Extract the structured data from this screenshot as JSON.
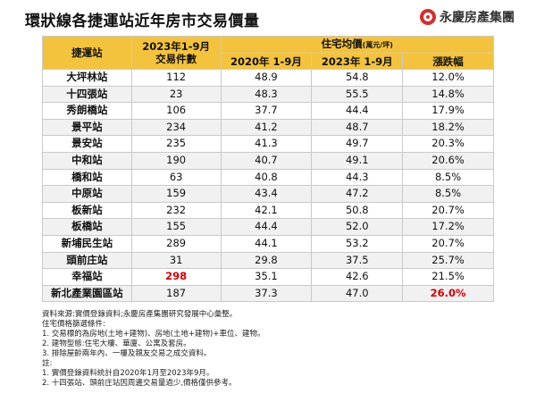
{
  "title": "環狀線各捷運站近年房市交易價量",
  "brand": {
    "name": "永慶房產集團",
    "logo_icon": "yungching-logo-icon"
  },
  "table": {
    "headers": {
      "station": "捷運站",
      "count_line1": "2023年1-9月",
      "count_line2": "交易件數",
      "price_group": "住宅均價",
      "price_unit": "(萬元/坪)",
      "price_2020": "2020年 1-9月",
      "price_2023": "2023年 1-9月",
      "change": "漲跌幅"
    },
    "rows": [
      {
        "station": "大坪林站",
        "count": "112",
        "p2020": "48.9",
        "p2023": "54.8",
        "change": "12.0%"
      },
      {
        "station": "十四張站",
        "count": "23",
        "p2020": "48.3",
        "p2023": "55.5",
        "change": "14.8%"
      },
      {
        "station": "秀朗橋站",
        "count": "106",
        "p2020": "37.7",
        "p2023": "44.4",
        "change": "17.9%"
      },
      {
        "station": "景平站",
        "count": "234",
        "p2020": "41.2",
        "p2023": "48.7",
        "change": "18.2%"
      },
      {
        "station": "景安站",
        "count": "235",
        "p2020": "41.3",
        "p2023": "49.7",
        "change": "20.3%"
      },
      {
        "station": "中和站",
        "count": "190",
        "p2020": "40.7",
        "p2023": "49.1",
        "change": "20.6%"
      },
      {
        "station": "橋和站",
        "count": "63",
        "p2020": "40.8",
        "p2023": "44.3",
        "change": "8.5%"
      },
      {
        "station": "中原站",
        "count": "159",
        "p2020": "43.4",
        "p2023": "47.2",
        "change": "8.5%"
      },
      {
        "station": "板新站",
        "count": "232",
        "p2020": "42.1",
        "p2023": "50.8",
        "change": "20.7%"
      },
      {
        "station": "板橋站",
        "count": "155",
        "p2020": "44.4",
        "p2023": "52.0",
        "change": "17.2%"
      },
      {
        "station": "新埔民生站",
        "count": "289",
        "p2020": "44.1",
        "p2023": "53.2",
        "change": "20.7%"
      },
      {
        "station": "頭前庄站",
        "count": "31",
        "p2020": "29.8",
        "p2023": "37.5",
        "change": "25.7%"
      },
      {
        "station": "幸福站",
        "count": "298",
        "p2020": "35.1",
        "p2023": "42.6",
        "change": "21.5%",
        "highlight_count": true
      },
      {
        "station": "新北產業園區站",
        "count": "187",
        "p2020": "37.3",
        "p2023": "47.0",
        "change": "26.0%",
        "highlight_change": true
      }
    ]
  },
  "notes": [
    "資料來源:實價登錄資料;永慶房產集團研究發展中心彙整。",
    "住宅價格篩選條件:",
    "1. 交易標的為房地(土地+建物)、房地(土地+建物)+車位、建物。",
    "2. 建物型態:住宅大樓、華廈、公寓及套房。",
    "3. 排除屋齡兩年內、一樓及親友交易之成交資料。",
    "註:",
    "1. 實價登錄資料統計自2020年1月至2023年9月。",
    "2. 十四張站、頭前庄站因周邊交易量過少,價格僅供參考。"
  ],
  "colors": {
    "header_bg": "#f4c33d",
    "highlight": "#d50000",
    "row_alt": "#f1f1f1"
  }
}
